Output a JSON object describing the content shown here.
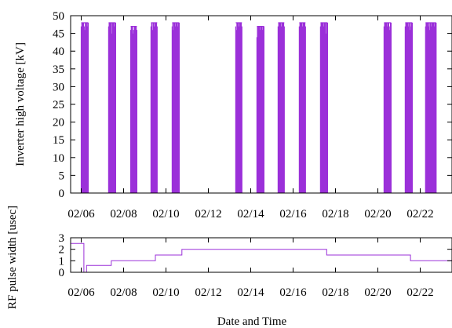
{
  "figure": {
    "xlabel": "Date and Time",
    "series_color": "#9b30d9"
  },
  "chart_data": [
    {
      "type": "line",
      "title": "",
      "xlabel": "",
      "ylabel": "Inverter high voltage [kV]",
      "xlim": [
        "2024-02-05T12:00",
        "2024-02-23T12:00"
      ],
      "x_tick_labels": [
        "02/06",
        "02/08",
        "02/10",
        "02/12",
        "02/14",
        "02/16",
        "02/18",
        "02/20",
        "02/22"
      ],
      "x_tick_dates": [
        "2024-02-06",
        "2024-02-08",
        "2024-02-10",
        "2024-02-12",
        "2024-02-14",
        "2024-02-16",
        "2024-02-18",
        "2024-02-20",
        "2024-02-22"
      ],
      "ylim": [
        0,
        50
      ],
      "y_ticks": [
        0,
        5,
        10,
        15,
        20,
        25,
        30,
        35,
        40,
        45,
        50
      ],
      "grid": false,
      "series": [
        {
          "color": "#9b30d9",
          "operating_bursts": [
            {
              "start": "2024-02-06T00:00",
              "end": "2024-02-06T08:00",
              "max_kV": 48
            },
            {
              "start": "2024-02-07T07:00",
              "end": "2024-02-07T15:00",
              "max_kV": 48
            },
            {
              "start": "2024-02-08T08:00",
              "end": "2024-02-08T15:00",
              "max_kV": 47
            },
            {
              "start": "2024-02-09T07:00",
              "end": "2024-02-09T14:00",
              "max_kV": 48
            },
            {
              "start": "2024-02-10T07:00",
              "end": "2024-02-10T15:00",
              "max_kV": 48
            },
            {
              "start": "2024-02-13T07:00",
              "end": "2024-02-13T14:00",
              "max_kV": 48
            },
            {
              "start": "2024-02-14T07:00",
              "end": "2024-02-14T15:00",
              "max_kV": 47
            },
            {
              "start": "2024-02-15T07:00",
              "end": "2024-02-15T14:00",
              "max_kV": 48
            },
            {
              "start": "2024-02-16T07:00",
              "end": "2024-02-16T14:00",
              "max_kV": 48
            },
            {
              "start": "2024-02-17T07:00",
              "end": "2024-02-17T15:00",
              "max_kV": 48
            },
            {
              "start": "2024-02-20T07:00",
              "end": "2024-02-20T15:00",
              "max_kV": 48
            },
            {
              "start": "2024-02-21T07:00",
              "end": "2024-02-21T15:00",
              "max_kV": 48
            },
            {
              "start": "2024-02-22T06:00",
              "end": "2024-02-22T18:00",
              "max_kV": 48
            }
          ]
        }
      ]
    },
    {
      "type": "line",
      "title": "",
      "xlabel": "Date and Time",
      "ylabel": "RF pulse width [usec]",
      "xlim": [
        "2024-02-05T12:00",
        "2024-02-23T12:00"
      ],
      "x_tick_labels": [
        "02/06",
        "02/08",
        "02/10",
        "02/12",
        "02/14",
        "02/16",
        "02/18",
        "02/20",
        "02/22"
      ],
      "x_tick_dates": [
        "2024-02-06",
        "2024-02-08",
        "2024-02-10",
        "2024-02-12",
        "2024-02-14",
        "2024-02-16",
        "2024-02-18",
        "2024-02-20",
        "2024-02-22"
      ],
      "ylim": [
        0,
        3
      ],
      "y_ticks": [
        0,
        1,
        2,
        3
      ],
      "grid": false,
      "series": [
        {
          "color": "#9b30d9",
          "step_points": [
            {
              "x": "2024-02-05T12:00",
              "y": 2.5
            },
            {
              "x": "2024-02-06T03:00",
              "y": 2.5
            },
            {
              "x": "2024-02-06T03:00",
              "y": 0.0
            },
            {
              "x": "2024-02-06T06:00",
              "y": 0.0
            },
            {
              "x": "2024-02-06T06:00",
              "y": 0.6
            },
            {
              "x": "2024-02-07T10:00",
              "y": 0.6
            },
            {
              "x": "2024-02-07T10:00",
              "y": 1.0
            },
            {
              "x": "2024-02-09T12:00",
              "y": 1.0
            },
            {
              "x": "2024-02-09T12:00",
              "y": 1.5
            },
            {
              "x": "2024-02-10T18:00",
              "y": 1.5
            },
            {
              "x": "2024-02-10T18:00",
              "y": 2.0
            },
            {
              "x": "2024-02-17T14:00",
              "y": 2.0
            },
            {
              "x": "2024-02-17T14:00",
              "y": 1.5
            },
            {
              "x": "2024-02-21T13:00",
              "y": 1.5
            },
            {
              "x": "2024-02-21T13:00",
              "y": 1.0
            },
            {
              "x": "2024-02-23T12:00",
              "y": 1.0
            }
          ]
        }
      ]
    }
  ]
}
